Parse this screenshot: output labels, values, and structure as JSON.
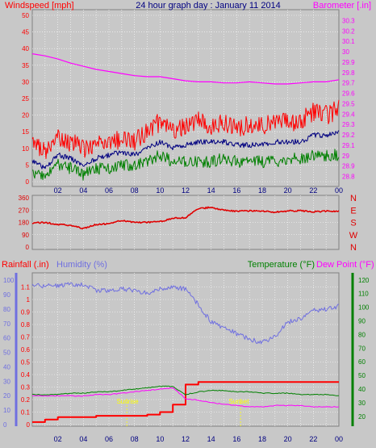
{
  "header": {
    "windspeed_label": "Windspeed [mph]",
    "title": "24 hour graph day : January 11 2014",
    "barometer_label": "Barometer [.in]"
  },
  "bottom_header": {
    "rainfall_label": "Rainfall (.in)",
    "humidity_label": "Humidity (%)",
    "temperature_label": "Temperature (°F)",
    "dewpoint_label": "Dew Point (°F)"
  },
  "markers": {
    "sunrise_label": "Sunrise",
    "sunset_label": "Sunset"
  },
  "colors": {
    "background": "#c8c8c8",
    "grid": "#ffffff",
    "time_axis": "#000080",
    "windspeed": "#ff0000",
    "wind_avg": "#000080",
    "wind_low": "#008000",
    "barometer": "#ff00ff",
    "direction": "#e00000",
    "rainfall": "#ff0000",
    "humidity": "#6f6fe0",
    "temperature": "#008000",
    "dewpoint": "#ff00ff",
    "markers": "#ffff00"
  },
  "chart_data": [
    {
      "type": "line",
      "xlabel": "",
      "x_ticks": [
        "02",
        "04",
        "06",
        "08",
        "10",
        "12",
        "14",
        "16",
        "18",
        "20",
        "22",
        "00"
      ],
      "left_ylabel": "Windspeed [mph]",
      "left_ylim": [
        0,
        50
      ],
      "left_ticks": [
        "0",
        "5",
        "10",
        "15",
        "20",
        "25",
        "30",
        "35",
        "40",
        "45",
        "50"
      ],
      "right_ylabel": "Barometer [.in]",
      "right_ylim": [
        28.75,
        30.35
      ],
      "right_ticks": [
        "28.8",
        "28.9",
        "29",
        "29.1",
        "29.2",
        "29.3",
        "29.4",
        "29.5",
        "29.6",
        "29.7",
        "29.8",
        "29.9",
        "30",
        "30.1",
        "30.2",
        "30.3"
      ],
      "x_hours": [
        0,
        1,
        2,
        3,
        4,
        5,
        6,
        7,
        8,
        9,
        10,
        11,
        12,
        13,
        14,
        15,
        16,
        17,
        18,
        19,
        20,
        21,
        22,
        23,
        24
      ],
      "series": [
        {
          "name": "Windspeed (gust)",
          "axis": "left",
          "values": [
            12,
            9,
            13,
            12,
            10,
            11,
            12,
            13,
            12,
            15,
            18,
            15,
            17,
            18,
            17,
            18,
            16,
            17,
            17,
            17,
            18,
            18,
            21,
            20,
            22
          ]
        },
        {
          "name": "Windspeed (average)",
          "axis": "left",
          "values": [
            6,
            4,
            8,
            7,
            5,
            7,
            8,
            9,
            8,
            10,
            12,
            10,
            11,
            12,
            12,
            12,
            11,
            11,
            11,
            12,
            12,
            12,
            14,
            14,
            15
          ]
        },
        {
          "name": "Windspeed (low)",
          "axis": "left",
          "values": [
            3,
            2,
            5,
            4,
            2,
            4,
            4,
            5,
            5,
            6,
            8,
            6,
            6,
            6,
            6,
            7,
            6,
            6,
            6,
            6,
            7,
            7,
            8,
            8,
            8
          ]
        },
        {
          "name": "Barometer",
          "axis": "right",
          "values": [
            29.98,
            29.96,
            29.93,
            29.89,
            29.86,
            29.83,
            29.81,
            29.79,
            29.77,
            29.76,
            29.76,
            29.74,
            29.72,
            29.71,
            29.71,
            29.7,
            29.7,
            29.71,
            29.7,
            29.69,
            29.69,
            29.7,
            29.71,
            29.71,
            29.73
          ]
        }
      ]
    },
    {
      "type": "line",
      "ylabel": "",
      "ylim": [
        0,
        360
      ],
      "left_ticks": [
        "0",
        "90",
        "180",
        "270",
        "360"
      ],
      "right_ticks": [
        "N",
        "W",
        "S",
        "E",
        "N"
      ],
      "x_hours": [
        0,
        1,
        2,
        3,
        4,
        5,
        6,
        7,
        8,
        9,
        10,
        11,
        12,
        13,
        14,
        15,
        16,
        17,
        18,
        19,
        20,
        21,
        22,
        23,
        24
      ],
      "series": [
        {
          "name": "Wind direction",
          "values": [
            175,
            180,
            165,
            160,
            135,
            165,
            170,
            195,
            180,
            180,
            185,
            210,
            215,
            280,
            290,
            270,
            262,
            265,
            263,
            255,
            263,
            265,
            258,
            262,
            260
          ]
        }
      ]
    },
    {
      "type": "line",
      "x_ticks": [
        "02",
        "04",
        "06",
        "08",
        "10",
        "12",
        "14",
        "16",
        "18",
        "20",
        "22",
        "00"
      ],
      "rain_ylabel": "Rainfall (.in)",
      "rain_ylim": [
        0,
        1.2
      ],
      "rain_ticks": [
        "0",
        "0.1",
        "0.2",
        "0.3",
        "0.4",
        "0.5",
        "0.6",
        "0.7",
        "0.8",
        "0.9",
        "1",
        "1.1"
      ],
      "humidity_ylabel": "Humidity (%)",
      "humidity_ylim": [
        0,
        104
      ],
      "humidity_ticks": [
        "0",
        "10",
        "20",
        "30",
        "40",
        "50",
        "60",
        "70",
        "80",
        "90",
        "100"
      ],
      "temp_ylabel": "Temperature (°F)",
      "temp_ylim": [
        14,
        124
      ],
      "temp_ticks": [
        "20",
        "30",
        "40",
        "50",
        "60",
        "70",
        "80",
        "90",
        "100",
        "110",
        "120"
      ],
      "x_hours": [
        0,
        1,
        2,
        3,
        4,
        5,
        6,
        7,
        8,
        9,
        10,
        11,
        12,
        13,
        14,
        15,
        16,
        17,
        18,
        19,
        20,
        21,
        22,
        23,
        24
      ],
      "series": [
        {
          "name": "Rainfall",
          "axis": "rain",
          "values": [
            0.02,
            0.04,
            0.06,
            0.06,
            0.06,
            0.07,
            0.07,
            0.07,
            0.07,
            0.08,
            0.1,
            0.16,
            0.32,
            0.34,
            0.34,
            0.34,
            0.34,
            0.34,
            0.34,
            0.34,
            0.34,
            0.34,
            0.34,
            0.34,
            0.34
          ]
        },
        {
          "name": "Humidity",
          "axis": "humidity",
          "values": [
            97,
            96,
            96,
            97,
            97,
            93,
            93,
            94,
            93,
            91,
            94,
            95,
            94,
            83,
            71,
            67,
            63,
            59,
            57,
            61,
            71,
            73,
            79,
            80,
            82
          ]
        },
        {
          "name": "Temperature",
          "axis": "temp",
          "values": [
            36,
            36,
            36,
            37,
            37,
            38,
            38,
            39,
            40,
            41,
            42,
            42,
            36,
            38,
            39,
            39,
            38,
            38,
            37,
            37,
            37,
            36,
            36,
            36,
            35
          ]
        },
        {
          "name": "Dew Point",
          "axis": "temp",
          "values": [
            35,
            35,
            35,
            35,
            35,
            36,
            36,
            37,
            38,
            39,
            40,
            41,
            33,
            32,
            30,
            29,
            28,
            27,
            27,
            28,
            28,
            28,
            27,
            27,
            27
          ]
        }
      ],
      "sunrise_hour": 7.4,
      "sunset_hour": 16.3
    }
  ]
}
